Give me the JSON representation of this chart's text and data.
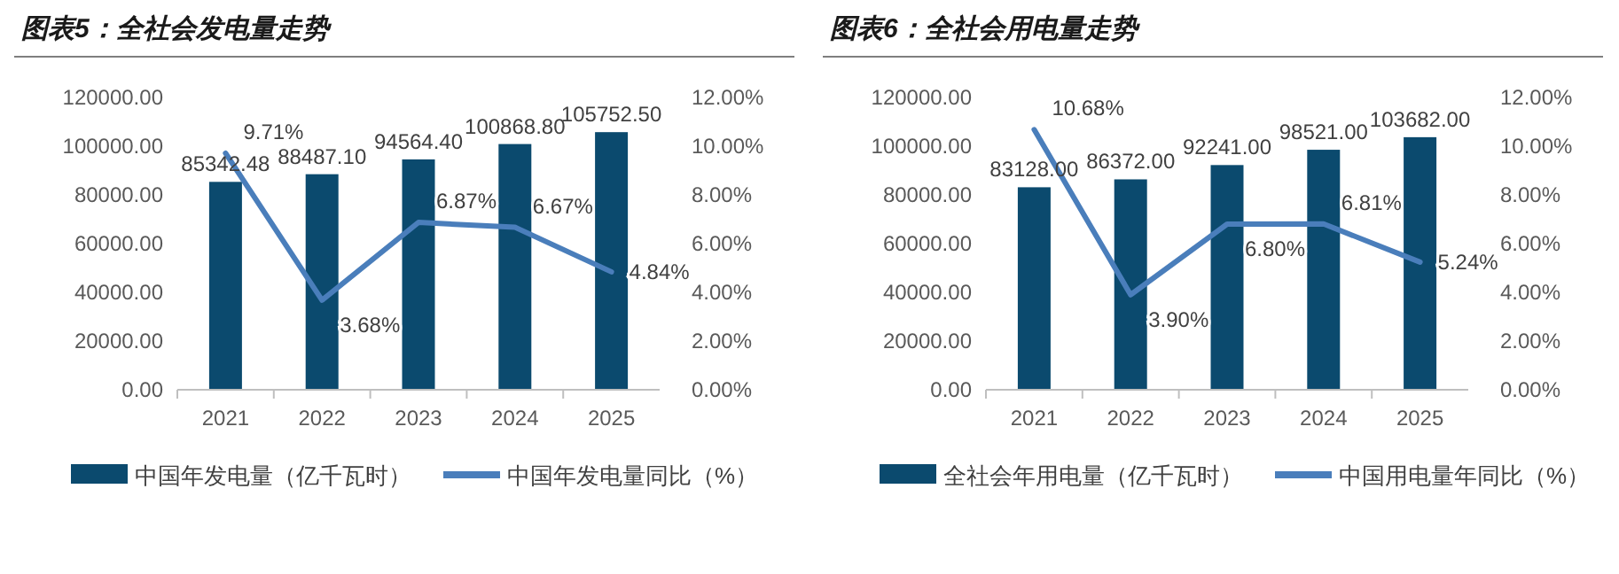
{
  "chart_data": [
    {
      "type": "bar",
      "title": "图表5：全社会发电量走势",
      "categories": [
        "2021",
        "2022",
        "2023",
        "2024",
        "2025"
      ],
      "series": [
        {
          "name": "中国年发电量（亿千瓦时）",
          "color": "#0b4a6e",
          "values": [
            85342.48,
            88487.1,
            94564.4,
            100868.8,
            105752.5
          ],
          "value_labels": [
            "85342.48",
            "88487.10",
            "94564.40",
            "100868.80",
            "105752.50"
          ]
        },
        {
          "name": "中国年发电量同比（%）",
          "type": "line",
          "axis": "y2",
          "color": "#4a7ebb",
          "values": [
            9.71,
            3.68,
            6.87,
            6.67,
            4.84
          ],
          "value_labels": [
            "9.71%",
            "3.68%",
            "6.87%",
            "6.67%",
            "4.84%"
          ]
        }
      ],
      "ylim": [
        0,
        120000
      ],
      "yticks": [
        {
          "value": 0,
          "label": "0.00"
        },
        {
          "value": 20000,
          "label": "20000.00"
        },
        {
          "value": 40000,
          "label": "40000.00"
        },
        {
          "value": 60000,
          "label": "60000.00"
        },
        {
          "value": 80000,
          "label": "80000.00"
        },
        {
          "value": 100000,
          "label": "100000.00"
        },
        {
          "value": 120000,
          "label": "120000.00"
        }
      ],
      "y2lim": [
        0,
        12
      ],
      "y2ticks": [
        {
          "value": 0,
          "label": "0.00%"
        },
        {
          "value": 2,
          "label": "2.00%"
        },
        {
          "value": 4,
          "label": "4.00%"
        },
        {
          "value": 6,
          "label": "6.00%"
        },
        {
          "value": 8,
          "label": "8.00%"
        },
        {
          "value": 10,
          "label": "10.00%"
        },
        {
          "value": 12,
          "label": "12.00%"
        }
      ],
      "legend": "bottom"
    },
    {
      "type": "bar",
      "title": "图表6：全社会用电量走势",
      "categories": [
        "2021",
        "2022",
        "2023",
        "2024",
        "2025"
      ],
      "series": [
        {
          "name": "全社会年用电量（亿千瓦时）",
          "color": "#0b4a6e",
          "values": [
            83128,
            86372,
            92241,
            98521,
            103682
          ],
          "value_labels": [
            "83128.00",
            "86372.00",
            "92241.00",
            "98521.00",
            "103682.00"
          ]
        },
        {
          "name": "中国用电量年同比（%）",
          "type": "line",
          "axis": "y2",
          "color": "#4a7ebb",
          "values": [
            10.68,
            3.9,
            6.8,
            6.81,
            5.24
          ],
          "value_labels": [
            "10.68%",
            "3.90%",
            "6.80%",
            "6.81%",
            "5.24%"
          ]
        }
      ],
      "ylim": [
        0,
        120000
      ],
      "yticks": [
        {
          "value": 0,
          "label": "0.00"
        },
        {
          "value": 20000,
          "label": "20000.00"
        },
        {
          "value": 40000,
          "label": "40000.00"
        },
        {
          "value": 60000,
          "label": "60000.00"
        },
        {
          "value": 80000,
          "label": "80000.00"
        },
        {
          "value": 100000,
          "label": "100000.00"
        },
        {
          "value": 120000,
          "label": "120000.00"
        }
      ],
      "y2lim": [
        0,
        12
      ],
      "y2ticks": [
        {
          "value": 0,
          "label": "0.00%"
        },
        {
          "value": 2,
          "label": "2.00%"
        },
        {
          "value": 4,
          "label": "4.00%"
        },
        {
          "value": 6,
          "label": "6.00%"
        },
        {
          "value": 8,
          "label": "8.00%"
        },
        {
          "value": 10,
          "label": "10.00%"
        },
        {
          "value": 12,
          "label": "12.00%"
        }
      ],
      "legend": "bottom"
    }
  ]
}
